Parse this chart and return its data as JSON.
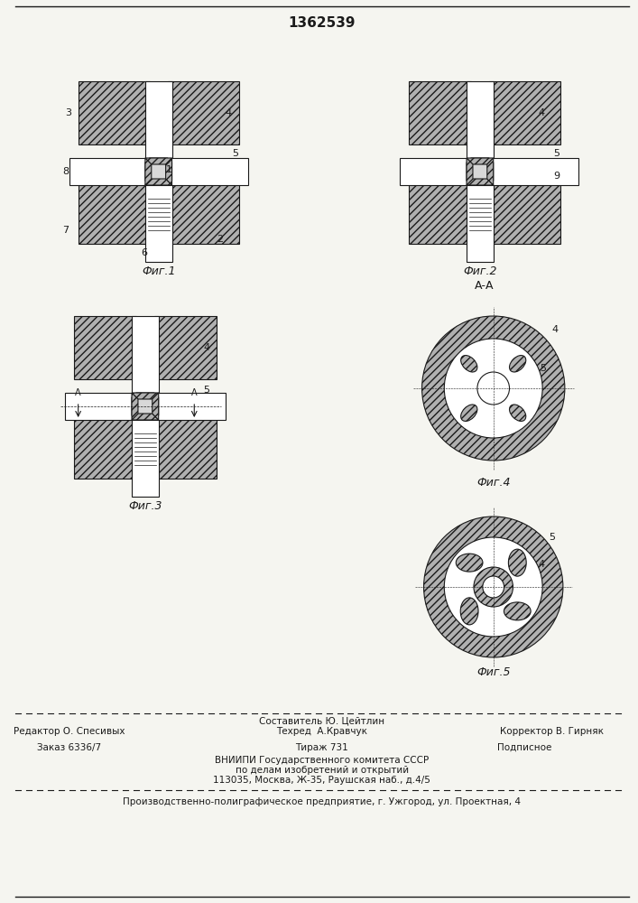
{
  "title": "1362539",
  "title_fontsize": 12,
  "bg_color": "#f5f5f0",
  "line_color": "#1a1a1a",
  "hatch_color": "#1a1a1a",
  "fig1_caption": "Фиг.1",
  "fig2_caption": "Фиг.2",
  "fig3_caption": "Фиг.3",
  "fig4_caption": "Фиг.4",
  "fig5_caption": "Фиг.5",
  "fig4_label": "А-А",
  "footer_line1_left": "Редактор О. Спесивых",
  "footer_line1_center": "Техред  А.Кравчук",
  "footer_line1_center_top": "Составитель Ю. Цейтлин",
  "footer_line1_right": "Корректор В. Гирняк",
  "footer_line2_left": "Заказ 6336/7",
  "footer_line2_center": "Тираж 731",
  "footer_line2_right": "Подписное",
  "footer_line3": "ВНИИПИ Государственного комитета СССР",
  "footer_line4": "по делам изобретений и открытий",
  "footer_line5": "113035, Москва, Ж-35, Раушская наб., д.4/5",
  "footer_bottom": "Производственно-полиграфическое предприятие, г. Ужгород, ул. Проектная, 4"
}
